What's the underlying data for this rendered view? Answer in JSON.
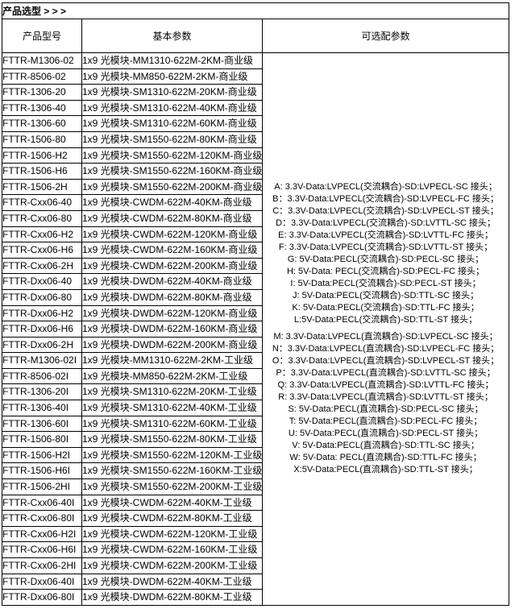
{
  "page": {
    "title": "产品选型 > > >"
  },
  "table": {
    "headers": {
      "model": "产品型号",
      "basic": "基本参数",
      "optional": "可选配参数"
    },
    "rows": [
      {
        "model": "FTTR-M1306-02",
        "params": "1x9 光模块-MM1310-622M-2KM-商业级"
      },
      {
        "model": "FTTR-8506-02",
        "params": "1x9 光模块-MM850-622M-2KM-商业级"
      },
      {
        "model": "FTTR-1306-20",
        "params": "1x9 光模块-SM1310-622M-20KM-商业级"
      },
      {
        "model": "FTTR-1306-40",
        "params": "1x9 光模块-SM1310-622M-40KM-商业级"
      },
      {
        "model": "FTTR-1306-60",
        "params": "1x9 光模块-SM1310-622M-60KM-商业级"
      },
      {
        "model": "FTTR-1506-80",
        "params": "1x9 光模块-SM1550-622M-80KM-商业级"
      },
      {
        "model": "FTTR-1506-H2",
        "params": "1x9 光模块-SM1550-622M-120KM-商业级"
      },
      {
        "model": "FTTR-1506-H6",
        "params": "1x9 光模块-SM1550-622M-160KM-商业级"
      },
      {
        "model": "FTTR-1506-2H",
        "params": "1x9 光模块-SM1550-622M-200KM-商业级"
      },
      {
        "model": "FTTR-Cxx06-40",
        "params": "1x9 光模块-CWDM-622M-40KM-商业级"
      },
      {
        "model": "FTTR-Cxx06-80",
        "params": "1x9 光模块-CWDM-622M-80KM-商业级"
      },
      {
        "model": "FTTR-Cxx06-H2",
        "params": "1x9 光模块-CWDM-622M-120KM-商业级"
      },
      {
        "model": "FTTR-Cxx06-H6",
        "params": "1x9 光模块-CWDM-622M-160KM-商业级"
      },
      {
        "model": "FTTR-Cxx06-2H",
        "params": "1x9 光模块-CWDM-622M-200KM-商业级"
      },
      {
        "model": "FTTR-Dxx06-40",
        "params": "1x9 光模块-DWDM-622M-40KM-商业级"
      },
      {
        "model": "FTTR-Dxx06-80",
        "params": "1x9 光模块-DWDM-622M-80KM-商业级"
      },
      {
        "model": "FTTR-Dxx06-H2",
        "params": "1x9 光模块-DWDM-622M-120KM-商业级"
      },
      {
        "model": "FTTR-Dxx06-H6",
        "params": "1x9 光模块-DWDM-622M-160KM-商业级"
      },
      {
        "model": "FTTR-Dxx06-2H",
        "params": "1x9 光模块-DWDM-622M-200KM-商业级"
      },
      {
        "model": "FTTR-M1306-02I",
        "params": "1x9 光模块-MM1310-622M-2KM-工业级"
      },
      {
        "model": "FTTR-8506-02I",
        "params": "1x9 光模块-MM850-622M-2KM-工业级"
      },
      {
        "model": "FTTR-1306-20I",
        "params": "1x9 光模块-SM1310-622M-20KM-工业级"
      },
      {
        "model": "FTTR-1306-40I",
        "params": "1x9 光模块-SM1310-622M-40KM-工业级"
      },
      {
        "model": "FTTR-1306-60I",
        "params": "1x9 光模块-SM1310-622M-60KM-工业级"
      },
      {
        "model": "FTTR-1506-80I",
        "params": "1x9 光模块-SM1550-622M-80KM-工业级"
      },
      {
        "model": "FTTR-1506-H2I",
        "params": "1x9 光模块-SM1550-622M-120KM-工业级"
      },
      {
        "model": "FTTR-1506-H6I",
        "params": "1x9 光模块-SM1550-622M-160KM-工业级"
      },
      {
        "model": "FTTR-1506-2HI",
        "params": "1x9 光模块-SM1550-622M-200KM-工业级"
      },
      {
        "model": "FTTR-Cxx06-40I",
        "params": "1x9 光模块-CWDM-622M-40KM-工业级"
      },
      {
        "model": "FTTR-Cxx06-80I",
        "params": "1x9 光模块-CWDM-622M-80KM-工业级"
      },
      {
        "model": "FTTR-Cxx06-H2I",
        "params": "1x9 光模块-CWDM-622M-120KM-工业级"
      },
      {
        "model": "FTTR-Cxx06-H6I",
        "params": "1x9 光模块-CWDM-622M-160KM-工业级"
      },
      {
        "model": "FTTR-Cxx06-2HI",
        "params": "1x9 光模块-CWDM-622M-200KM-工业级"
      },
      {
        "model": "FTTR-Dxx06-40I",
        "params": "1x9 光模块-DWDM-622M-40KM-工业级"
      },
      {
        "model": "FTTR-Dxx06-80I",
        "params": "1x9 光模块-DWDM-622M-80KM-工业级"
      }
    ],
    "option_groups": [
      {
        "lines": [
          "A: 3.3V-Data:LVPECL(交流耦合)-SD:LVPECL-SC 接头；",
          "B：3.3V-Data:LVPECL(交流耦合)-SD:LVPECL-FC 接头；",
          "C：3.3V-Data:LVPECL(交流耦合)-SD:LVPECL-ST 接头；",
          "D：3.3V-Data:LVPECL(交流耦合)-SD:LVTTL-SC 接头；",
          "E: 3.3V-Data:LVPECL(交流耦合)-SD:LVTTL-FC 接头；",
          "F: 3.3V-Data:LVPECL(交流耦合)-SD:LVTTL-ST 接头；",
          "G: 5V-Data:PECL(交流耦合)-SD:PECL-SC 接头；",
          "H: 5V-Data: PECL(交流耦合)-SD:PECL-FC 接头；",
          "I: 5V-Data:PECL(交流耦合)-SD:PECL-ST 接头；",
          "J: 5V-Data:PECL(交流耦合)-SD:TTL-SC 接头；",
          "K: 5V-Data:PECL(交流耦合)-SD:TTL-FC 接头；",
          "L:5V-Data:PECL(交流耦合)-SD:TTL-ST 接头；"
        ]
      },
      {
        "lines": [
          "M: 3.3V-Data:LVPECL(直流耦合)-SD:LVPECL-SC 接头；",
          "N：3.3V-Data:LVPECL(直流耦合)-SD:LVPECL-FC 接头；",
          "O：3.3V-Data:LVPECL(直流耦合)-SD:LVPECL-ST 接头；",
          "P：3.3V-Data:LVPECL(直流耦合)-SD:LVTTL-SC 接头；",
          "Q: 3.3V-Data:LVPECL(直流耦合)-SD:LVTTL-FC 接头；",
          "R: 3.3V-Data:LVPECL(直流耦合)-SD:LVTTL-ST 接头；",
          "S: 5V-Data:PECL(直流耦合)-SD:PECL-SC 接头；",
          "T: 5V-Data:PECL(直流耦合)-SD:PECL-FC 接头；",
          "U: 5V-Data:PECL(直流耦合)-SD:PECL-ST 接头；",
          "V: 5V-Data:PECL(直流耦合)-SD:TTL-SC 接头；",
          "W: 5V-Data: PECL(直流耦合)-SD:TTL-FC 接头；",
          "X:5V-Data:PECL(直流耦合)-SD:TTL-ST 接头；"
        ]
      }
    ]
  }
}
